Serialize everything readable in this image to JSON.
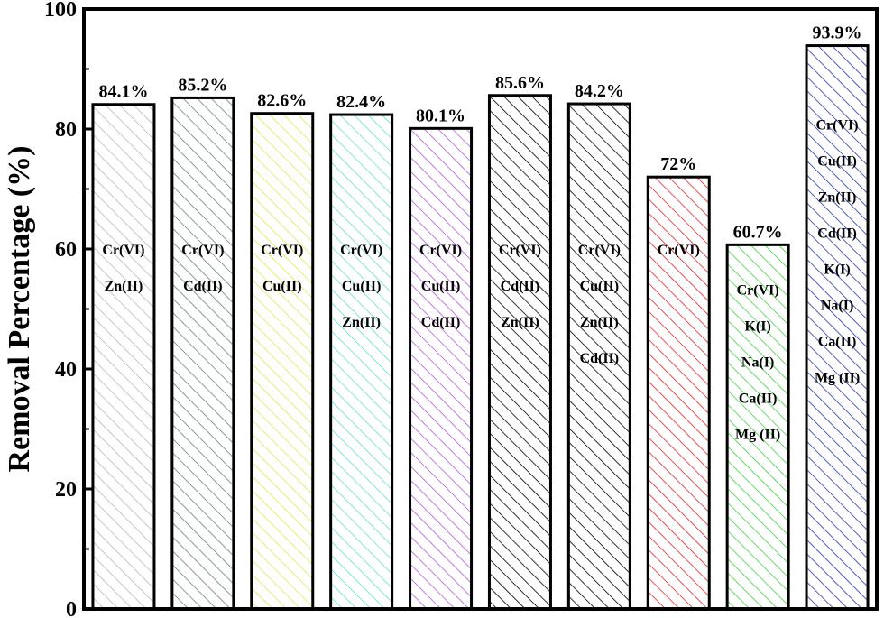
{
  "chart_data": {
    "type": "bar",
    "ylabel": "Removal Percentage (%)",
    "xlabel": "",
    "ylim": [
      0,
      100
    ],
    "yticks": [
      "0",
      "20",
      "40",
      "60",
      "80",
      "100"
    ],
    "grid": false,
    "bars": [
      {
        "value": 84.1,
        "label": "84.1%",
        "ions": [
          "Cr(VI)",
          "Zn(II)"
        ],
        "color": "#b8b8b8"
      },
      {
        "value": 85.2,
        "label": "85.2%",
        "ions": [
          "Cr(VI)",
          "Cd(II)"
        ],
        "color": "#6e7f86"
      },
      {
        "value": 82.6,
        "label": "82.6%",
        "ions": [
          "Cr(VI)",
          "Cu(II)"
        ],
        "color": "#e6e64a"
      },
      {
        "value": 82.4,
        "label": "82.4%",
        "ions": [
          "Cr(VI)",
          "Cu(II)",
          "Zn(II)"
        ],
        "color": "#5fe0d0"
      },
      {
        "value": 80.1,
        "label": "80.1%",
        "ions": [
          "Cr(VI)",
          "Cu(II)",
          "Cd(II)"
        ],
        "color": "#b05ad8"
      },
      {
        "value": 85.6,
        "label": "85.6%",
        "ions": [
          "Cr(VI)",
          "Cd(II)",
          "Zn(II)"
        ],
        "color": "#000000"
      },
      {
        "value": 84.2,
        "label": "84.2%",
        "ions": [
          "Cr(VI)",
          "Cu(II)",
          "Zn(II)",
          "Cd(II)"
        ],
        "color": "#000000"
      },
      {
        "value": 72,
        "label": "72%",
        "ions": [
          "Cr(VI)"
        ],
        "color": "#e0252a"
      },
      {
        "value": 60.7,
        "label": "60.7%",
        "ions": [
          "Cr(VI)",
          "K(I)",
          "Na(I)",
          "Ca(II)",
          "Mg (II)"
        ],
        "color": "#3fd43f"
      },
      {
        "value": 93.9,
        "label": "93.9%",
        "ions": [
          "Cr(VI)",
          "Cu(II)",
          "Zn(II)",
          "Cd(II)",
          "K(I)",
          "Na(I)",
          "Ca(II)",
          "Mg (II)"
        ],
        "color": "#2638a8"
      }
    ]
  }
}
